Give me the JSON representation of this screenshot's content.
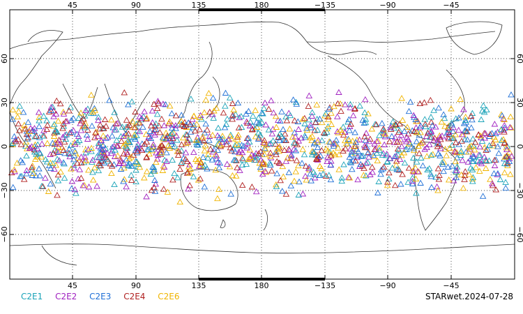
{
  "map": {
    "top_lon_labels": [
      "45",
      "90",
      "135",
      "180",
      "−135",
      "−90",
      "−45"
    ],
    "bottom_lon_labels": [
      "45",
      "90",
      "135",
      "180",
      "−135",
      "−90",
      "−45"
    ],
    "left_lat_labels": [
      "60",
      "30",
      "0",
      "−30",
      "−60"
    ],
    "right_lat_labels": [
      "60",
      "30",
      "0",
      "−30",
      "−60"
    ]
  },
  "legend": [
    {
      "label": "C2E1",
      "color": "#1aa3b8"
    },
    {
      "label": "C2E2",
      "color": "#a020c0"
    },
    {
      "label": "C2E3",
      "color": "#1f6fd6"
    },
    {
      "label": "C2E4",
      "color": "#b02020"
    },
    {
      "label": "C2E6",
      "color": "#f0b400"
    }
  ],
  "stamp": "STARwet.2024-07-28"
}
